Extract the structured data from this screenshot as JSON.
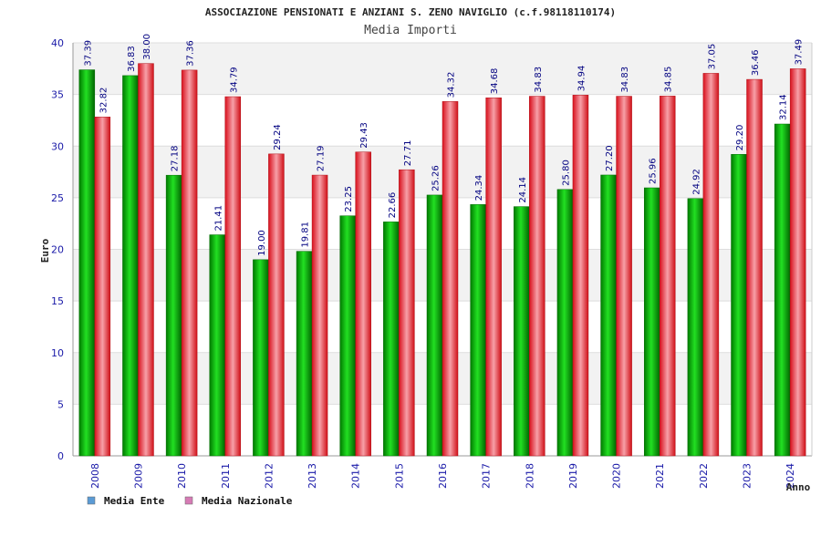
{
  "chart_data": {
    "type": "bar",
    "title": "ASSOCIAZIONE PENSIONATI E ANZIANI S. ZENO NAVIGLIO (c.f.98118110174)",
    "subtitle": "Media Importi",
    "xlabel": "Anno",
    "ylabel": "Euro",
    "ylim": [
      0,
      40
    ],
    "yticks": [
      "0",
      "5",
      "10",
      "15",
      "20",
      "25",
      "30",
      "35",
      "40"
    ],
    "categories": [
      "2008",
      "2009",
      "2010",
      "2011",
      "2012",
      "2013",
      "2014",
      "2015",
      "2016",
      "2017",
      "2018",
      "2019",
      "2020",
      "2021",
      "2022",
      "2023",
      "2024"
    ],
    "series": [
      {
        "name": "Media Ente",
        "color": "#00aa00",
        "legend_color": "#5b9bd5",
        "values": [
          37.39,
          36.83,
          27.18,
          21.41,
          19.0,
          19.81,
          23.25,
          22.66,
          25.26,
          24.34,
          24.14,
          25.8,
          27.2,
          25.96,
          24.92,
          29.2,
          32.14
        ],
        "labels": [
          "37.39",
          "36.83",
          "27.18",
          "21.41",
          "19.00",
          "19.81",
          "23.25",
          "22.66",
          "25.26",
          "24.34",
          "24.14",
          "25.80",
          "27.20",
          "25.96",
          "24.92",
          "29.20",
          "32.14"
        ]
      },
      {
        "name": "Media Nazionale",
        "color": "#e8202a",
        "legend_color": "#d67bb5",
        "values": [
          32.82,
          38.0,
          37.36,
          34.79,
          29.24,
          27.19,
          29.43,
          27.71,
          34.32,
          34.68,
          34.83,
          34.94,
          34.83,
          34.85,
          37.05,
          36.46,
          37.49
        ],
        "labels": [
          "32.82",
          "38.00",
          "37.36",
          "34.79",
          "29.24",
          "27.19",
          "29.43",
          "27.71",
          "34.32",
          "34.68",
          "34.83",
          "34.94",
          "34.83",
          "34.85",
          "37.05",
          "36.46",
          "37.49"
        ]
      }
    ],
    "grid": true,
    "legend": "bottom-left"
  }
}
